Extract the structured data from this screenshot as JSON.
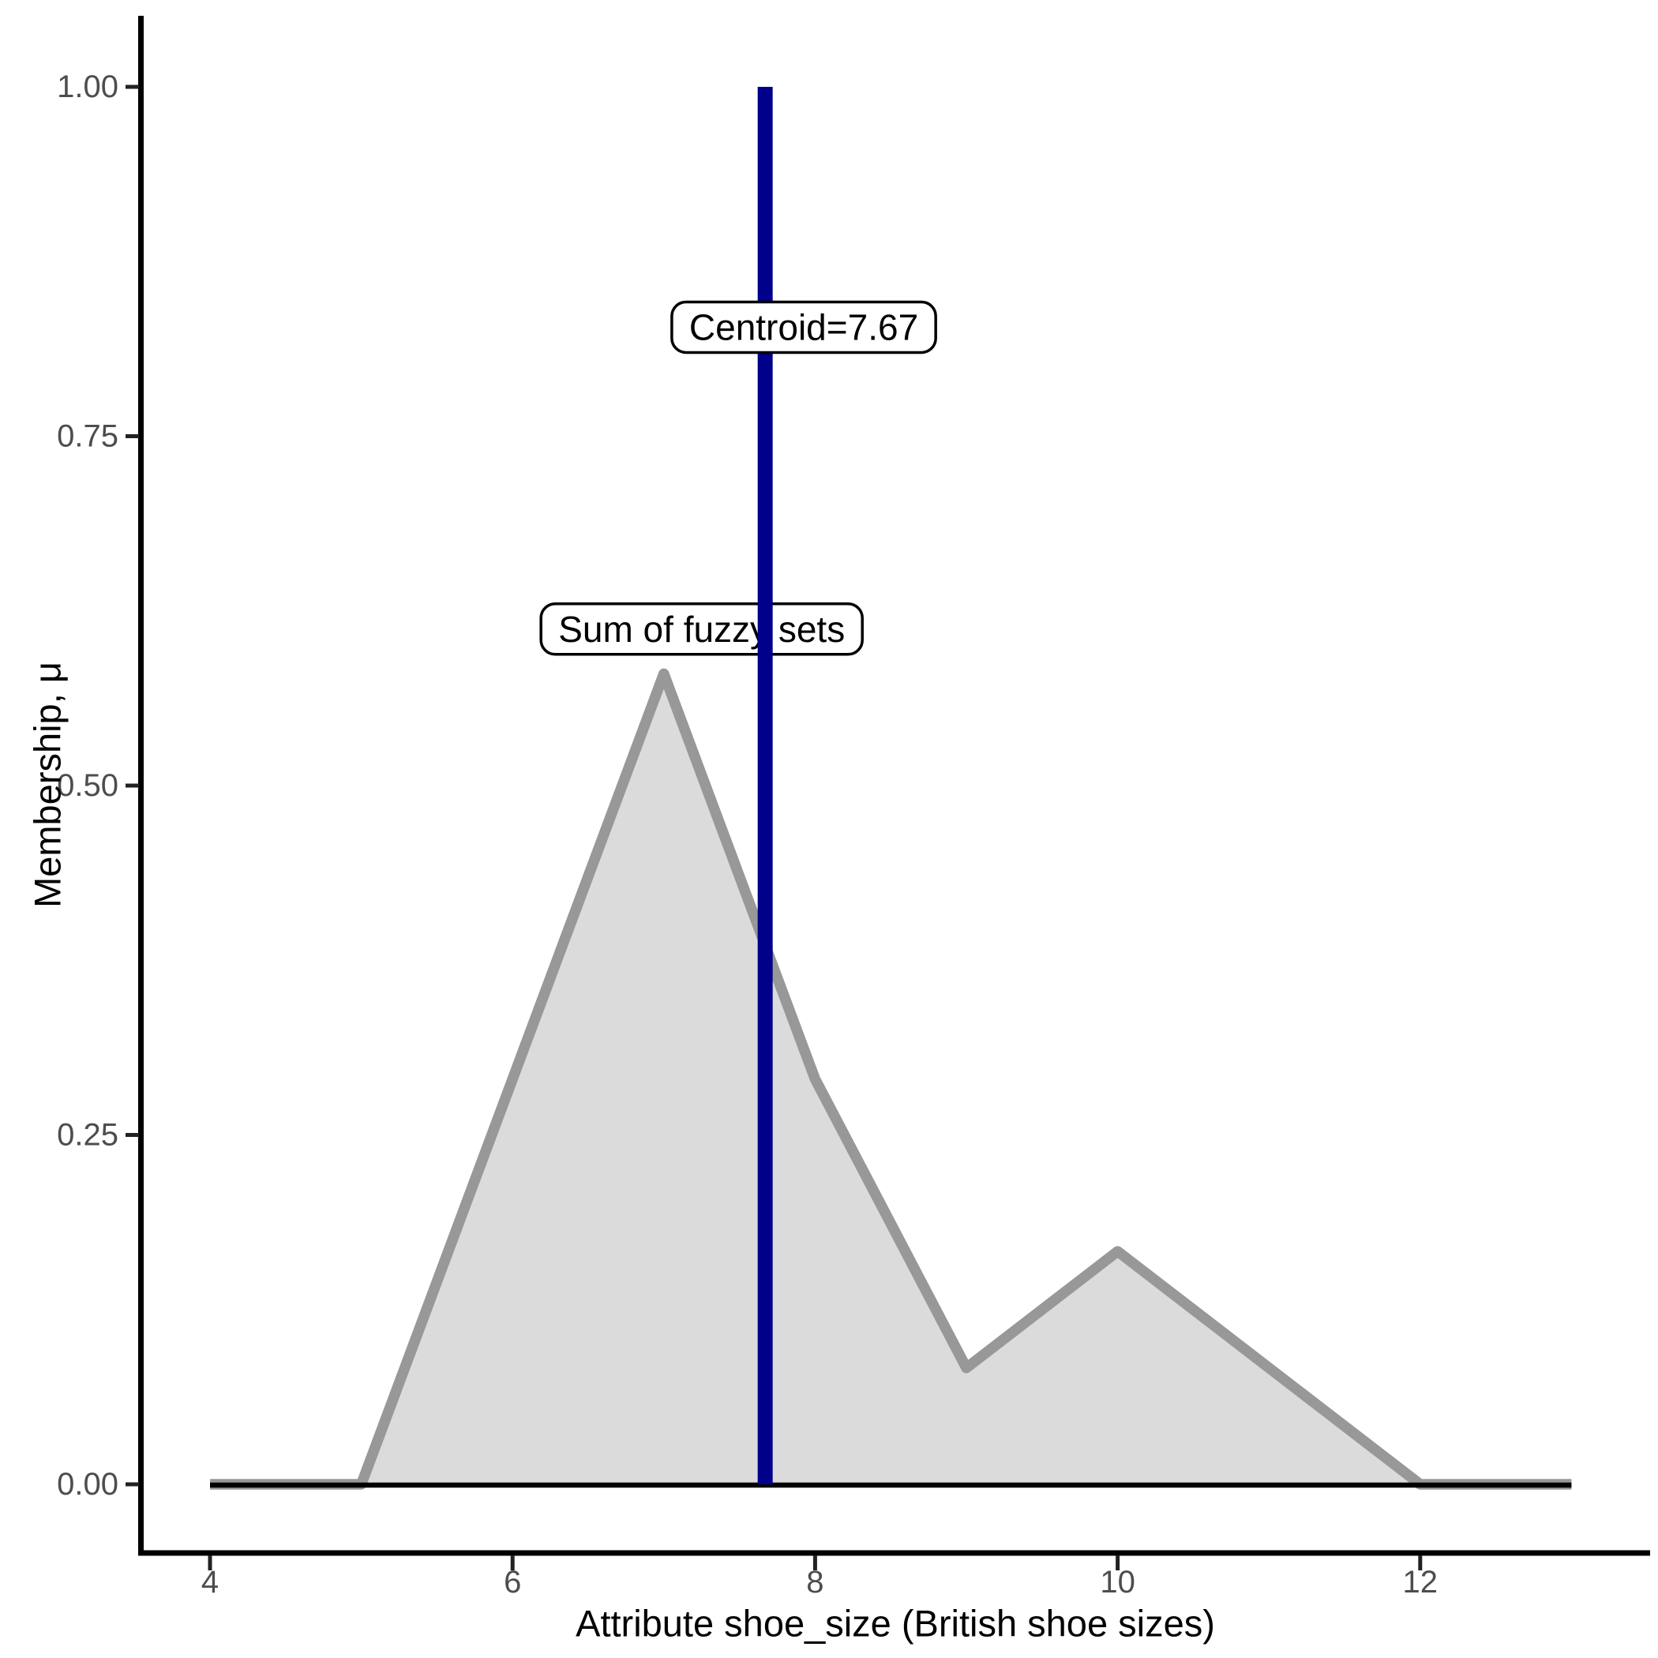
{
  "page": {
    "background": "#FFFFFF"
  },
  "chart_data": {
    "type": "area",
    "title": "",
    "xlabel": "Attribute shoe_size (British shoe sizes)",
    "ylabel": "Membership, μ",
    "xlim": [
      3.54,
      13.52
    ],
    "ylim": [
      -0.05,
      1.05
    ],
    "grid": "off",
    "legend": "none",
    "x_ticks": {
      "values": [
        4,
        6,
        8,
        10,
        12
      ],
      "labels": [
        "4",
        "6",
        "8",
        "10",
        "12"
      ]
    },
    "y_ticks": {
      "values": [
        1.0,
        0.75,
        0.5,
        0.25,
        0.0
      ],
      "labels": [
        "1.00",
        "0.75",
        "0.50",
        "0.25",
        "0.00"
      ]
    },
    "series": [
      {
        "name": "Sum of fuzzy sets",
        "points_x": [
          4,
          5,
          7,
          8,
          9,
          10,
          12,
          13
        ],
        "points_mu": [
          0,
          0,
          0.58,
          0.29,
          0.0833,
          0.1667,
          0,
          0
        ],
        "fill": "#DBDBDB",
        "stroke": "#989898"
      }
    ],
    "baseline": {
      "y": 0,
      "x_start": 4,
      "x_end": 13,
      "color": "#000000"
    },
    "centroid": {
      "value": 7.67,
      "label": "Centroid=7.67",
      "line_color": "#00008B",
      "mu_span": [
        0,
        1
      ]
    },
    "annotations": [
      {
        "id": "sum",
        "text": "Sum of fuzzy sets",
        "x": 7.25,
        "mu": 0.612
      },
      {
        "id": "centroid",
        "text": "Centroid=7.67",
        "x": 7.925,
        "mu": 0.828
      }
    ],
    "colors": {
      "tick_label": "#4D4D4D",
      "axis": "#000000",
      "annotation_bg": "#FFFFFF",
      "annotation_border": "#000000"
    }
  }
}
